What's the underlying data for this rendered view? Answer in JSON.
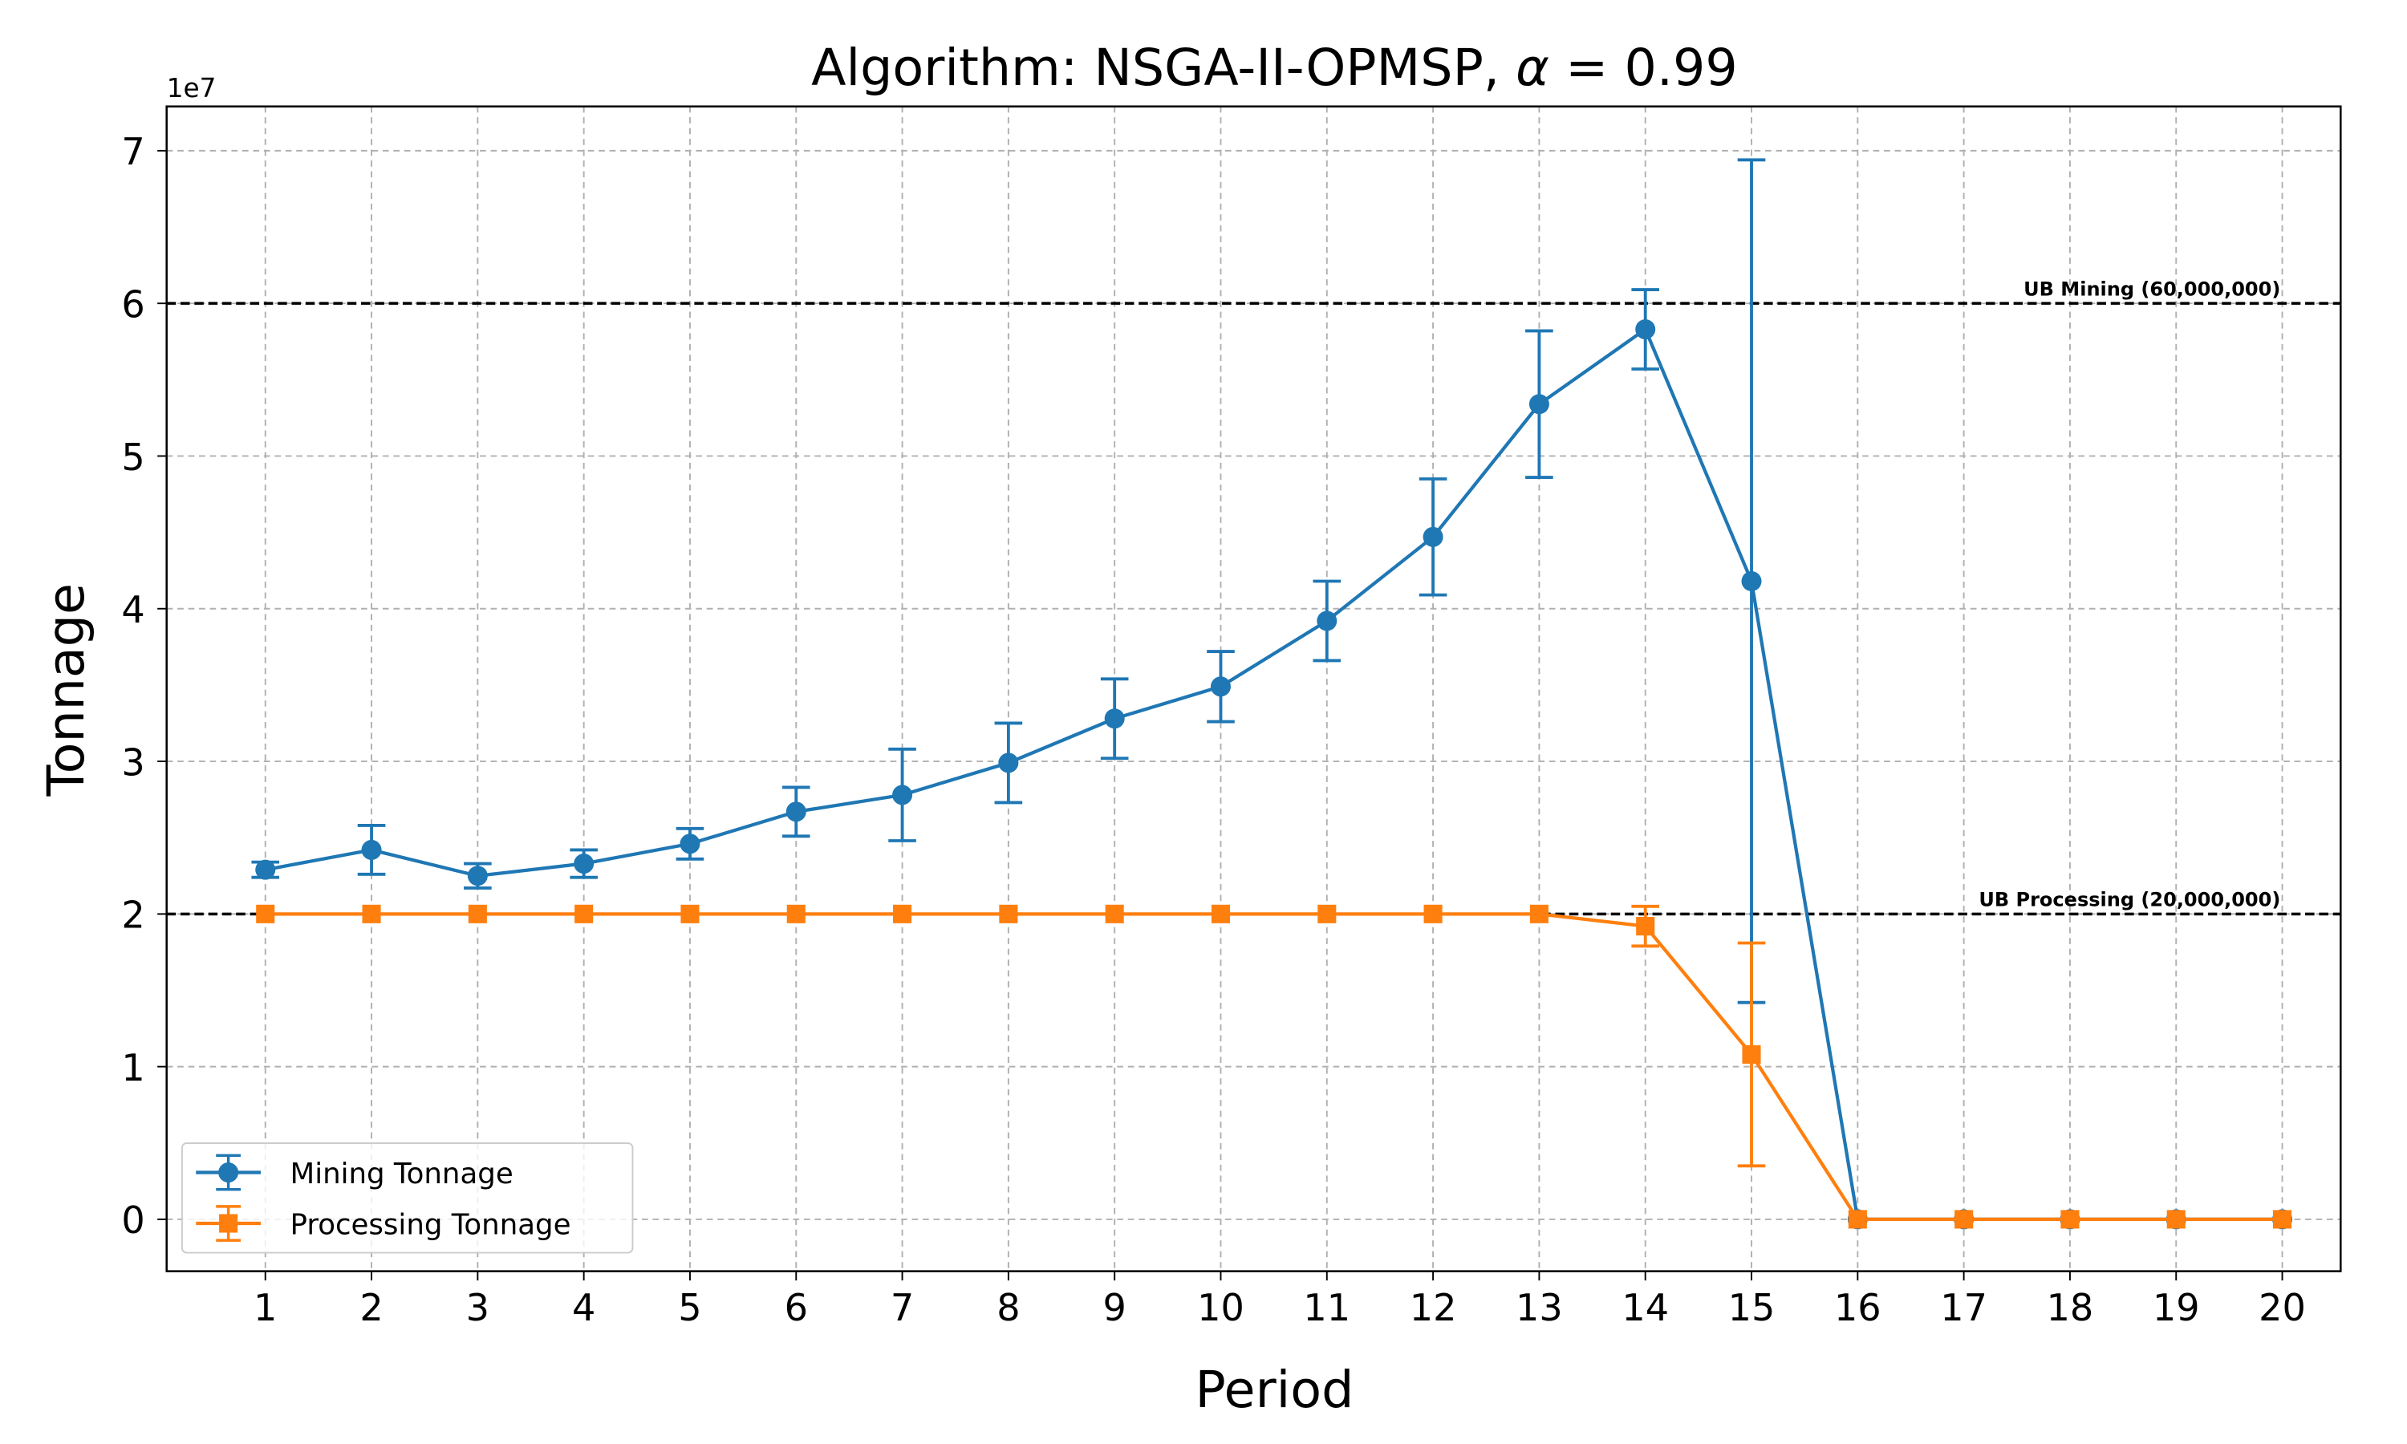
{
  "chart_data": {
    "type": "line",
    "title": "Algorithm: NSGA-II-OPMSP, α = 0.99",
    "title_parts": {
      "prefix": "Algorithm: NSGA-II-OPMSP, ",
      "symbol": "α",
      "suffix": " = 0.99"
    },
    "xlabel": "Period",
    "ylabel": "Tonnage",
    "y_offset_label": "1e7",
    "x": [
      1,
      2,
      3,
      4,
      5,
      6,
      7,
      8,
      9,
      10,
      11,
      12,
      13,
      14,
      15,
      16,
      17,
      18,
      19,
      20
    ],
    "xlim": [
      0.07,
      20.55
    ],
    "ylim": [
      -3400000,
      72900000
    ],
    "x_ticks": [
      "1",
      "2",
      "3",
      "4",
      "5",
      "6",
      "7",
      "8",
      "9",
      "10",
      "11",
      "12",
      "13",
      "14",
      "15",
      "16",
      "17",
      "18",
      "19",
      "20"
    ],
    "y_ticks": [
      0,
      1,
      2,
      3,
      4,
      5,
      6,
      7
    ],
    "y_tick_labels": [
      "0",
      "1",
      "2",
      "3",
      "4",
      "5",
      "6",
      "7"
    ],
    "grid": true,
    "legend_position": "lower-left",
    "series": [
      {
        "name": "Mining Tonnage",
        "color": "#1f77b4",
        "marker": "circle",
        "values": [
          22900000,
          24200000,
          22500000,
          23300000,
          24600000,
          26700000,
          27800000,
          29900000,
          32800000,
          34900000,
          39200000,
          44700000,
          53400000,
          58300000,
          41800000,
          0,
          0,
          0,
          0,
          0
        ],
        "errors": [
          500000,
          1600000,
          800000,
          900000,
          1000000,
          1600000,
          3000000,
          2600000,
          2600000,
          2300000,
          2600000,
          3800000,
          4800000,
          2600000,
          27600000,
          0,
          0,
          0,
          0,
          0
        ]
      },
      {
        "name": "Processing Tonnage",
        "color": "#ff7f0e",
        "marker": "square",
        "values": [
          20000000,
          20000000,
          20000000,
          20000000,
          20000000,
          20000000,
          20000000,
          20000000,
          20000000,
          20000000,
          20000000,
          20000000,
          20000000,
          19200000,
          10800000,
          0,
          0,
          0,
          0,
          0
        ],
        "errors": [
          0,
          0,
          0,
          0,
          0,
          0,
          0,
          0,
          0,
          0,
          0,
          0,
          0,
          1300000,
          7300000,
          0,
          0,
          0,
          0,
          0
        ]
      }
    ],
    "reference_lines": [
      {
        "label": "UB Mining (60,000,000)",
        "value": 60000000,
        "color": "#000000",
        "style": "dashed"
      },
      {
        "label": "UB Processing (20,000,000)",
        "value": 20000000,
        "color": "#000000",
        "style": "dashed"
      }
    ]
  }
}
